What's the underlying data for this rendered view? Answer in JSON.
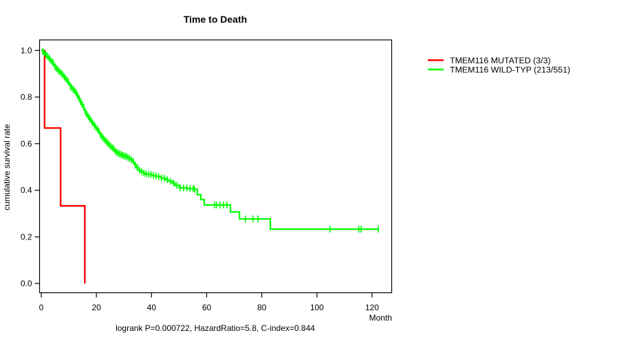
{
  "title": "Time to Death",
  "axes": {
    "y_label": "cumulative survival rate",
    "x_unit_label": "Month"
  },
  "footer": "logrank P=0.000722, HazardRatio=5.8, C-index=0.844",
  "legend": {
    "entries": [
      {
        "label": "TMEM116 MUTATED (3/3)",
        "color": "#ff0000"
      },
      {
        "label": "TMEM116 WILD-TYP (213/551)",
        "color": "#00ff00"
      }
    ]
  },
  "chart_data": {
    "type": "line",
    "subtype": "kaplan_meier_step",
    "title": "Time to Death",
    "xlabel": "Month",
    "ylabel": "cumulative survival rate",
    "xlim": [
      0,
      127
    ],
    "ylim": [
      0,
      1.0
    ],
    "x_tick_values": [
      0,
      20,
      40,
      60,
      80,
      100,
      120
    ],
    "x_tick_labels": [
      "0",
      "20",
      "40",
      "60",
      "80",
      "100",
      "120"
    ],
    "y_tick_values": [
      0,
      0.2,
      0.4,
      0.6,
      0.8,
      1
    ],
    "y_tick_labels": [
      "0.0",
      "0.2",
      "0.4",
      "0.6",
      "0.8",
      "1.0"
    ],
    "grid": false,
    "legend_position": "right_outside",
    "annotation": "logrank P=0.000722, HazardRatio=5.8, C-index=0.844",
    "series": [
      {
        "name": "TMEM116 MUTATED (3/3)",
        "color": "#ff0000",
        "n_events": "3/3",
        "line_width": 2.4,
        "steps": [
          [
            0,
            1.0
          ],
          [
            1.2,
            0.667
          ],
          [
            7,
            0.333
          ],
          [
            15.8,
            0.0
          ]
        ],
        "censor_ticks": []
      },
      {
        "name": "TMEM116 WILD-TYP (213/551)",
        "color": "#00ff00",
        "n_events": "213/551",
        "line_width": 2.2,
        "steps": [
          [
            0,
            1.0
          ],
          [
            0.5,
            0.995
          ],
          [
            1,
            0.988
          ],
          [
            1.5,
            0.982
          ],
          [
            2,
            0.975
          ],
          [
            2.5,
            0.968
          ],
          [
            3,
            0.96
          ],
          [
            3.5,
            0.952
          ],
          [
            4,
            0.945
          ],
          [
            4.5,
            0.938
          ],
          [
            5,
            0.93
          ],
          [
            5.5,
            0.923
          ],
          [
            6,
            0.916
          ],
          [
            6.5,
            0.909
          ],
          [
            7,
            0.903
          ],
          [
            7.5,
            0.897
          ],
          [
            8,
            0.888
          ],
          [
            8.5,
            0.88
          ],
          [
            9,
            0.872
          ],
          [
            9.5,
            0.864
          ],
          [
            10,
            0.856
          ],
          [
            10.5,
            0.848
          ],
          [
            11,
            0.84
          ],
          [
            11.5,
            0.833
          ],
          [
            12,
            0.826
          ],
          [
            12.5,
            0.818
          ],
          [
            13,
            0.805
          ],
          [
            13.5,
            0.793
          ],
          [
            14,
            0.78
          ],
          [
            14.5,
            0.768
          ],
          [
            15,
            0.756
          ],
          [
            15.5,
            0.746
          ],
          [
            16,
            0.736
          ],
          [
            16.5,
            0.726
          ],
          [
            17,
            0.716
          ],
          [
            17.5,
            0.706
          ],
          [
            18,
            0.697
          ],
          [
            18.5,
            0.688
          ],
          [
            19,
            0.679
          ],
          [
            19.5,
            0.67
          ],
          [
            20,
            0.661
          ],
          [
            20.5,
            0.653
          ],
          [
            21,
            0.646
          ],
          [
            21.5,
            0.638
          ],
          [
            22,
            0.63
          ],
          [
            22.5,
            0.622
          ],
          [
            23,
            0.615
          ],
          [
            23.5,
            0.608
          ],
          [
            24,
            0.601
          ],
          [
            24.5,
            0.594
          ],
          [
            25,
            0.587
          ],
          [
            25.5,
            0.582
          ],
          [
            26,
            0.576
          ],
          [
            26.5,
            0.571
          ],
          [
            27,
            0.566
          ],
          [
            27.5,
            0.561
          ],
          [
            28,
            0.558
          ],
          [
            28.5,
            0.555
          ],
          [
            29,
            0.552
          ],
          [
            29.5,
            0.549
          ],
          [
            30,
            0.546
          ],
          [
            31,
            0.541
          ],
          [
            32,
            0.536
          ],
          [
            32.5,
            0.531
          ],
          [
            33,
            0.524
          ],
          [
            33.5,
            0.517
          ],
          [
            34,
            0.508
          ],
          [
            34.5,
            0.498
          ],
          [
            35,
            0.487
          ],
          [
            36,
            0.48
          ],
          [
            37,
            0.474
          ],
          [
            37.5,
            0.47
          ],
          [
            38.5,
            0.468
          ],
          [
            40,
            0.464
          ],
          [
            41,
            0.461
          ],
          [
            42.5,
            0.458
          ],
          [
            43.5,
            0.452
          ],
          [
            45,
            0.446
          ],
          [
            46,
            0.439
          ],
          [
            47.5,
            0.431
          ],
          [
            48.5,
            0.421
          ],
          [
            50,
            0.41
          ],
          [
            53,
            0.407
          ],
          [
            55.5,
            0.404
          ],
          [
            56.6,
            0.381
          ],
          [
            57.9,
            0.36
          ],
          [
            59.1,
            0.337
          ],
          [
            68.6,
            0.307
          ],
          [
            71.9,
            0.277
          ],
          [
            83.1,
            0.233
          ],
          [
            122.5,
            0.233
          ]
        ],
        "censor_ticks": [
          0.6,
          1.1,
          1.7,
          2.2,
          2.8,
          3.3,
          3.9,
          4.4,
          5,
          5.5,
          6.1,
          6.6,
          7.2,
          7.7,
          8.3,
          8.8,
          9.4,
          9.9,
          10.5,
          11,
          11.6,
          12.1,
          12.7,
          13.2,
          13.8,
          14.3,
          14.9,
          15.4,
          16,
          16.5,
          17.1,
          17.6,
          18.2,
          18.7,
          19.3,
          19.8,
          20.4,
          20.9,
          21.5,
          22,
          22.6,
          23.1,
          23.7,
          24.2,
          24.8,
          25.3,
          25.9,
          26.4,
          27,
          27.5,
          28.1,
          28.6,
          29.2,
          29.7,
          30.3,
          30.8,
          31.4,
          32,
          32.7,
          33.4,
          34.1,
          34.8,
          35.6,
          36.4,
          37.2,
          38,
          38.9,
          39.8,
          40.7,
          41.6,
          42.6,
          43.6,
          44.6,
          45.7,
          46.8,
          48,
          49.2,
          50.4,
          51.6,
          52.8,
          54,
          55.1,
          55.6,
          62.9,
          63.6,
          64.8,
          66.1,
          67.3,
          74.1,
          76.8,
          78.6,
          104.7,
          115.2,
          116,
          122.3
        ]
      }
    ]
  }
}
